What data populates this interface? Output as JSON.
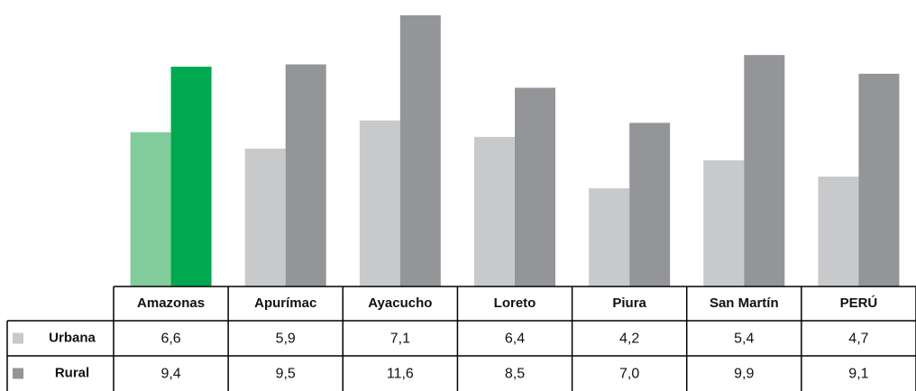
{
  "chart_data": {
    "type": "bar",
    "categories": [
      "Amazonas",
      "Apurímac",
      "Ayacucho",
      "Loreto",
      "Piura",
      "San Martín",
      "PERÚ"
    ],
    "series": [
      {
        "name": "Urbana",
        "color": "#c8c9cb",
        "colors": [
          "#83cc9c",
          "#c8c9cb",
          "#c8c9cb",
          "#c8c9cb",
          "#c8c9cb",
          "#c8c9cb",
          "#c8c9cb"
        ],
        "values": [
          6.6,
          5.9,
          7.1,
          6.4,
          4.2,
          5.4,
          4.7
        ],
        "value_labels": [
          "6,6",
          "5,9",
          "7,1",
          "6,4",
          "4,2",
          "5,4",
          "4,7"
        ]
      },
      {
        "name": "Rural",
        "color": "#939598",
        "colors": [
          "#00a94f",
          "#939598",
          "#939598",
          "#939598",
          "#939598",
          "#939598",
          "#939598"
        ],
        "values": [
          9.4,
          9.5,
          11.6,
          8.5,
          7.0,
          9.9,
          9.1
        ],
        "value_labels": [
          "9,4",
          "9,5",
          "11,6",
          "8,5",
          "7,0",
          "9,9",
          "9,1"
        ]
      }
    ]
  }
}
